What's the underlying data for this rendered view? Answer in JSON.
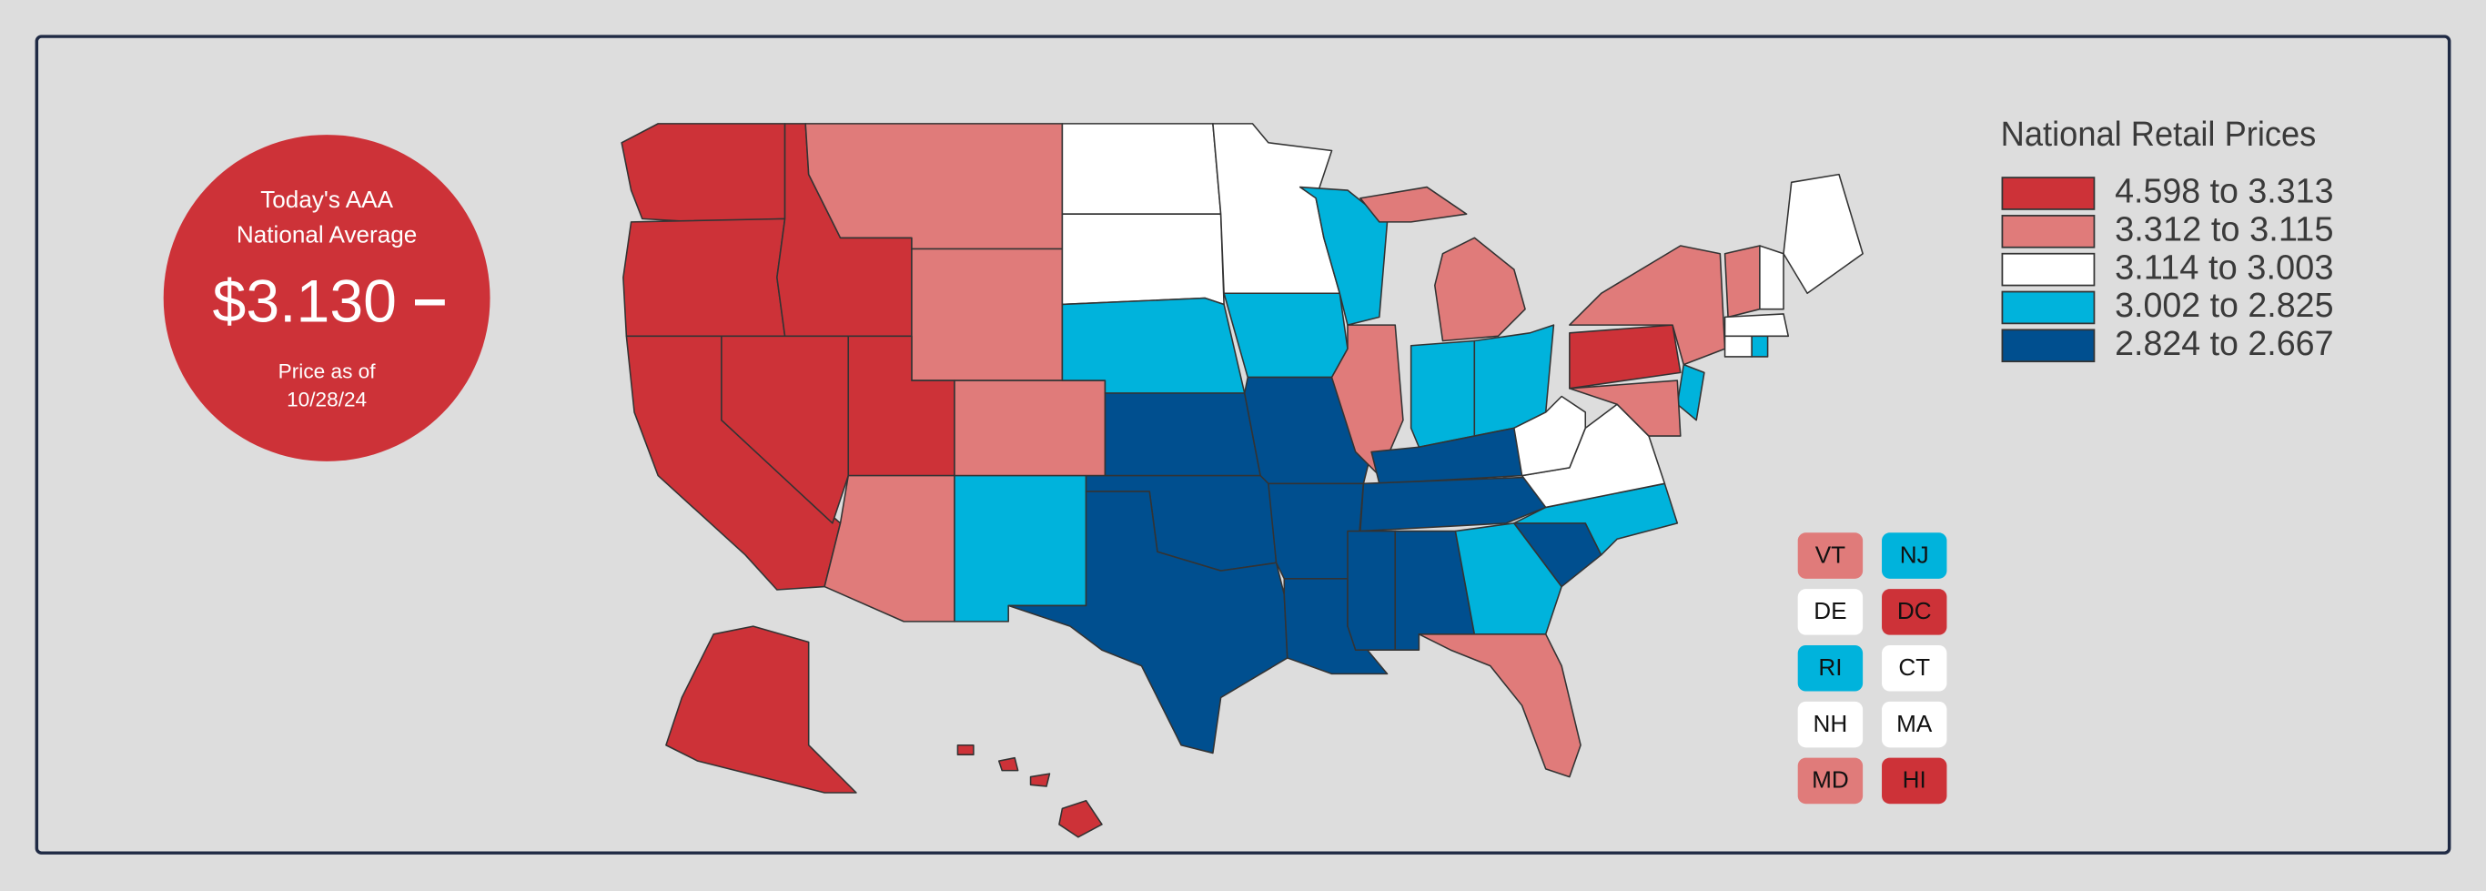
{
  "badge": {
    "line1": "Today's AAA",
    "line2": "National Average",
    "price": "$3.130",
    "trend": "–",
    "date_label": "Price as of",
    "date": "10/28/24",
    "color": "#cd3238"
  },
  "legend": {
    "title": "National Retail Prices",
    "entries": [
      {
        "label": "4.598 to 3.313",
        "color": "#cd3238"
      },
      {
        "label": "3.312 to 3.115",
        "color": "#e07b7a"
      },
      {
        "label": "3.114 to 3.003",
        "color": "#ffffff"
      },
      {
        "label": "3.002 to 2.825",
        "color": "#00b3dc"
      },
      {
        "label": "2.824 to 2.667",
        "color": "#004f8f"
      }
    ]
  },
  "small_states": [
    {
      "label": "VT",
      "color": "#e07b7a"
    },
    {
      "label": "NJ",
      "color": "#00b3dc"
    },
    {
      "label": "DE",
      "color": "#ffffff"
    },
    {
      "label": "DC",
      "color": "#cd3238"
    },
    {
      "label": "RI",
      "color": "#00b3dc"
    },
    {
      "label": "CT",
      "color": "#ffffff"
    },
    {
      "label": "NH",
      "color": "#ffffff"
    },
    {
      "label": "MA",
      "color": "#ffffff"
    },
    {
      "label": "MD",
      "color": "#e07b7a"
    },
    {
      "label": "HI",
      "color": "#cd3238"
    }
  ]
}
